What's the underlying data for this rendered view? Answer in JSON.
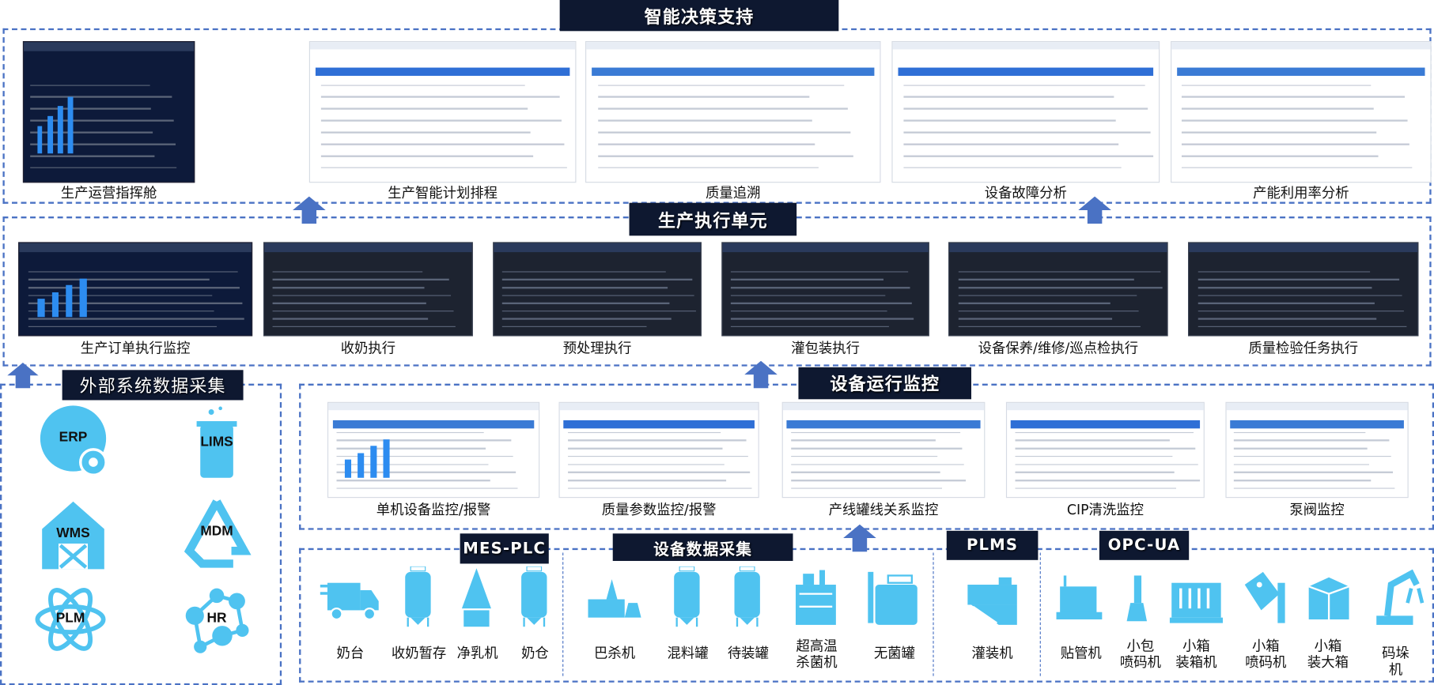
{
  "colors": {
    "accent": "#4a72c4",
    "icon": "#4fc3f0",
    "tag_bg": "#0e1830"
  },
  "sections": {
    "decision": "智能决策支持",
    "execution": "生产执行单元",
    "external": "外部系统数据采集",
    "monitoring": "设备运行监控",
    "mes_plc": "MES-PLC",
    "device_collect": "设备数据采集",
    "plms": "PLMS",
    "opc_ua": "OPC-UA"
  },
  "decision_screens": [
    {
      "label": "生产运营指挥舱",
      "theme": "navy"
    },
    {
      "label": "生产智能计划排程",
      "theme": "light"
    },
    {
      "label": "质量追溯",
      "theme": "light"
    },
    {
      "label": "设备故障分析",
      "theme": "light"
    },
    {
      "label": "产能利用率分析",
      "theme": "light"
    }
  ],
  "execution_screens": [
    {
      "label": "生产订单执行监控",
      "theme": "navy"
    },
    {
      "label": "收奶执行",
      "theme": "dark"
    },
    {
      "label": "预处理执行",
      "theme": "dark"
    },
    {
      "label": "灌包装执行",
      "theme": "dark"
    },
    {
      "label": "设备保养/维修/巡点检执行",
      "theme": "dark"
    },
    {
      "label": "质量检验任务执行",
      "theme": "dark"
    }
  ],
  "monitoring_screens": [
    {
      "label": "单机设备监控/报警",
      "theme": "light"
    },
    {
      "label": "质量参数监控/报警",
      "theme": "light"
    },
    {
      "label": "产线罐线关系监控",
      "theme": "light"
    },
    {
      "label": "CIP清洗监控",
      "theme": "light"
    },
    {
      "label": "泵阀监控",
      "theme": "light"
    }
  ],
  "external_systems": [
    {
      "label": "ERP",
      "icon": "gear-circle-icon"
    },
    {
      "label": "LIMS",
      "icon": "beaker-icon"
    },
    {
      "label": "WMS",
      "icon": "barn-icon"
    },
    {
      "label": "MDM",
      "icon": "recycle-icon"
    },
    {
      "label": "PLM",
      "icon": "atom-icon"
    },
    {
      "label": "HR",
      "icon": "people-network-icon"
    }
  ],
  "equipment": [
    {
      "label": "奶台",
      "icon": "truck-icon"
    },
    {
      "label": "收奶暂存",
      "icon": "tank-icon"
    },
    {
      "label": "净乳机",
      "icon": "separator-icon"
    },
    {
      "label": "奶仓",
      "icon": "tank-icon"
    },
    {
      "label": "巴杀机",
      "icon": "pasteurizer-icon"
    },
    {
      "label": "混料罐",
      "icon": "tank-icon"
    },
    {
      "label": "待装罐",
      "icon": "tank-icon"
    },
    {
      "label": "超高温\n杀菌机",
      "icon": "sterilizer-icon"
    },
    {
      "label": "无菌罐",
      "icon": "aseptic-tank-icon"
    },
    {
      "label": "灌装机",
      "icon": "filler-icon"
    },
    {
      "label": "贴管机",
      "icon": "straw-applicator-icon"
    },
    {
      "label": "小包\n喷码机",
      "icon": "coder-icon"
    },
    {
      "label": "小箱\n装箱机",
      "icon": "case-packer-icon"
    },
    {
      "label": "小箱\n喷码机",
      "icon": "tag-icon"
    },
    {
      "label": "小箱\n装大箱",
      "icon": "box-icon"
    },
    {
      "label": "码垛机",
      "icon": "robot-arm-icon"
    }
  ]
}
